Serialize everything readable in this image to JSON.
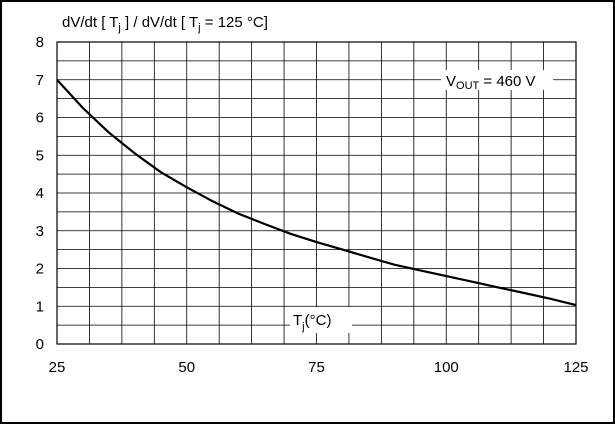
{
  "chart_data": {
    "type": "line",
    "title": "dV/dt [ Tⱼ ] / dV/dt [ Tⱼ = 125 °C]",
    "title_parts": {
      "a": "dV/dt [ T",
      "sub1": "j",
      "b": " ] / dV/dt [ T",
      "sub2": "j",
      "c": " = 125 °C]"
    },
    "xlabel": "Tⱼ(°C)",
    "xlabel_parts": {
      "main": "T",
      "sub": "j",
      "rest": "(°C)"
    },
    "ylabel": "",
    "xlim": [
      25,
      125
    ],
    "ylim": [
      0,
      8
    ],
    "x_ticks": [
      25,
      50,
      75,
      100,
      125
    ],
    "y_ticks": [
      0,
      1,
      2,
      3,
      4,
      5,
      6,
      7,
      8
    ],
    "grid": true,
    "annotation_parts": {
      "main": "V",
      "sub": "OUT",
      "rest": " = 460 V"
    },
    "series": [
      {
        "values_x": [
          25,
          30,
          35,
          40,
          45,
          50,
          55,
          60,
          65,
          70,
          75,
          80,
          85,
          90,
          95,
          100,
          105,
          110,
          115,
          120,
          125
        ],
        "values_y": [
          7.0,
          6.25,
          5.6,
          5.05,
          4.55,
          4.15,
          3.78,
          3.45,
          3.18,
          2.92,
          2.7,
          2.5,
          2.3,
          2.1,
          1.95,
          1.8,
          1.65,
          1.5,
          1.35,
          1.2,
          1.03
        ]
      }
    ]
  }
}
